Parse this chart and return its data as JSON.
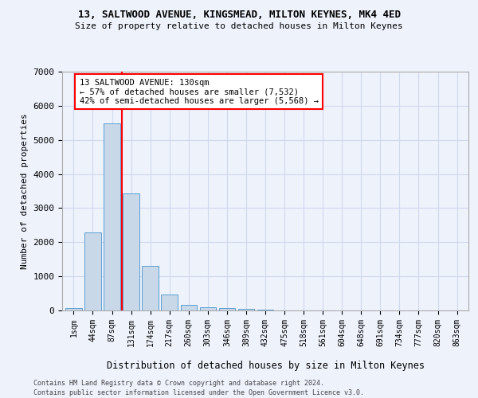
{
  "title1": "13, SALTWOOD AVENUE, KINGSMEAD, MILTON KEYNES, MK4 4ED",
  "title2": "Size of property relative to detached houses in Milton Keynes",
  "xlabel": "Distribution of detached houses by size in Milton Keynes",
  "ylabel": "Number of detached properties",
  "footnote1": "Contains HM Land Registry data © Crown copyright and database right 2024.",
  "footnote2": "Contains public sector information licensed under the Open Government Licence v3.0.",
  "bar_labels": [
    "1sqm",
    "44sqm",
    "87sqm",
    "131sqm",
    "174sqm",
    "217sqm",
    "260sqm",
    "303sqm",
    "346sqm",
    "389sqm",
    "432sqm",
    "475sqm",
    "518sqm",
    "561sqm",
    "604sqm",
    "648sqm",
    "691sqm",
    "734sqm",
    "777sqm",
    "820sqm",
    "863sqm"
  ],
  "bar_values": [
    80,
    2280,
    5480,
    3440,
    1310,
    470,
    155,
    95,
    60,
    40,
    30,
    0,
    0,
    0,
    0,
    0,
    0,
    0,
    0,
    0,
    0
  ],
  "bar_color": "#c8d8e8",
  "bar_edge_color": "#5a9fd4",
  "ylim": [
    0,
    7000
  ],
  "yticks": [
    0,
    1000,
    2000,
    3000,
    4000,
    5000,
    6000,
    7000
  ],
  "annotation_text": "13 SALTWOOD AVENUE: 130sqm\n← 57% of detached houses are smaller (7,532)\n42% of semi-detached houses are larger (5,568) →",
  "vline_x": 2.5,
  "bg_color": "#eef2fb",
  "grid_color": "#d0d8ee"
}
